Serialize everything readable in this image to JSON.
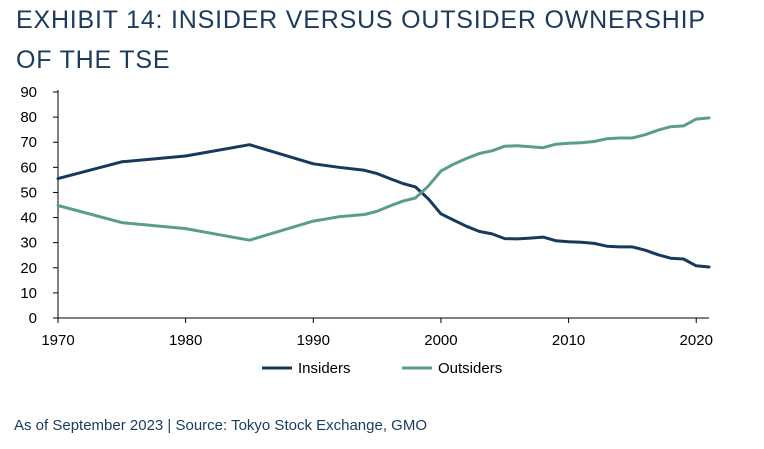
{
  "header": {
    "title_line1": "EXHIBIT 14: INSIDER VERSUS OUTSIDER OWNERSHIP",
    "title_line2": "OF THE TSE"
  },
  "footer": {
    "source": "As of September 2023 | Source: Tokyo Stock Exchange, GMO"
  },
  "colors": {
    "insiders": "#163a5c",
    "outsiders": "#5b9e86",
    "axis": "#000000",
    "text": "#1b3a5c"
  },
  "chart_data": {
    "type": "line",
    "title": "EXHIBIT 14: INSIDER VERSUS OUTSIDER OWNERSHIP OF THE TSE",
    "xlabel": "",
    "ylabel": "",
    "xlim": [
      1970,
      2021
    ],
    "ylim": [
      0,
      90
    ],
    "yticks": [
      0,
      10,
      20,
      30,
      40,
      50,
      60,
      70,
      80,
      90
    ],
    "xticks": [
      1970,
      1980,
      1990,
      2000,
      2010,
      2020
    ],
    "grid": false,
    "legend": "bottom-center",
    "series": [
      {
        "name": "Insiders",
        "color": "#163a5c",
        "x": [
          1970,
          1975,
          1980,
          1985,
          1990,
          1992,
          1994,
          1995,
          1996,
          1997,
          1998,
          1999,
          2000,
          2001,
          2002,
          2003,
          2004,
          2005,
          2006,
          2007,
          2008,
          2009,
          2010,
          2011,
          2012,
          2013,
          2014,
          2015,
          2016,
          2017,
          2018,
          2019,
          2020,
          2021
        ],
        "values": [
          55.5,
          62.2,
          64.5,
          69.0,
          61.4,
          60.0,
          58.8,
          57.5,
          55.5,
          53.6,
          52.2,
          47.5,
          41.5,
          39.0,
          36.5,
          34.5,
          33.5,
          31.6,
          31.5,
          31.8,
          32.2,
          30.8,
          30.4,
          30.2,
          29.7,
          28.6,
          28.3,
          28.3,
          27.0,
          25.2,
          23.8,
          23.5,
          20.8,
          20.3
        ]
      },
      {
        "name": "Outsiders",
        "color": "#5b9e86",
        "x": [
          1970,
          1975,
          1980,
          1985,
          1990,
          1992,
          1994,
          1995,
          1996,
          1997,
          1998,
          1999,
          2000,
          2001,
          2002,
          2003,
          2004,
          2005,
          2006,
          2007,
          2008,
          2009,
          2010,
          2011,
          2012,
          2013,
          2014,
          2015,
          2016,
          2017,
          2018,
          2019,
          2020,
          2021
        ],
        "values": [
          44.8,
          38.0,
          35.6,
          31.0,
          38.6,
          40.3,
          41.2,
          42.5,
          44.6,
          46.5,
          47.8,
          52.5,
          58.5,
          61.3,
          63.5,
          65.5,
          66.6,
          68.4,
          68.6,
          68.2,
          67.8,
          69.2,
          69.6,
          69.8,
          70.3,
          71.4,
          71.7,
          71.7,
          73.0,
          74.8,
          76.2,
          76.5,
          79.2,
          79.7
        ]
      }
    ]
  }
}
